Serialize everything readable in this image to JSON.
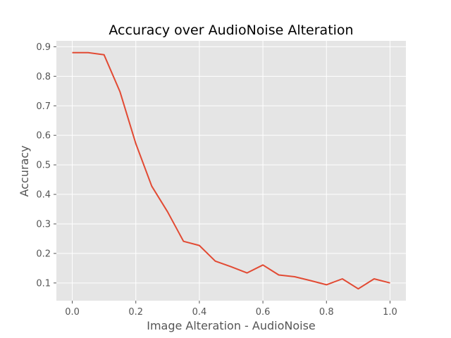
{
  "chart_data": {
    "type": "line",
    "title": "Accuracy over AudioNoise Alteration",
    "xlabel": "Image Alteration - AudioNoise",
    "ylabel": "Accuracy",
    "xlim": [
      -0.05,
      1.05
    ],
    "ylim": [
      0.04,
      0.92
    ],
    "xticks": [
      0.0,
      0.2,
      0.4,
      0.6,
      0.8,
      1.0
    ],
    "xtick_labels": [
      "0.0",
      "0.2",
      "0.4",
      "0.6",
      "0.8",
      "1.0"
    ],
    "yticks": [
      0.1,
      0.2,
      0.3,
      0.4,
      0.5,
      0.6,
      0.7,
      0.8,
      0.9
    ],
    "ytick_labels": [
      "0.1",
      "0.2",
      "0.3",
      "0.4",
      "0.5",
      "0.6",
      "0.7",
      "0.8",
      "0.9"
    ],
    "grid": true,
    "series": [
      {
        "color": "#e24a33",
        "x": [
          0.0,
          0.05,
          0.1,
          0.15,
          0.2,
          0.25,
          0.3,
          0.35,
          0.4,
          0.45,
          0.5,
          0.55,
          0.6,
          0.65,
          0.7,
          0.75,
          0.8,
          0.85,
          0.9,
          0.95,
          1.0
        ],
        "y": [
          0.88,
          0.88,
          0.873,
          0.748,
          0.572,
          0.428,
          0.341,
          0.241,
          0.227,
          0.174,
          0.155,
          0.134,
          0.161,
          0.127,
          0.121,
          0.108,
          0.094,
          0.114,
          0.08,
          0.114,
          0.1
        ]
      }
    ]
  },
  "colors": {
    "plot_background": "#e5e5e5",
    "grid": "#ffffff",
    "text": "#555555",
    "line": "#e24a33"
  }
}
